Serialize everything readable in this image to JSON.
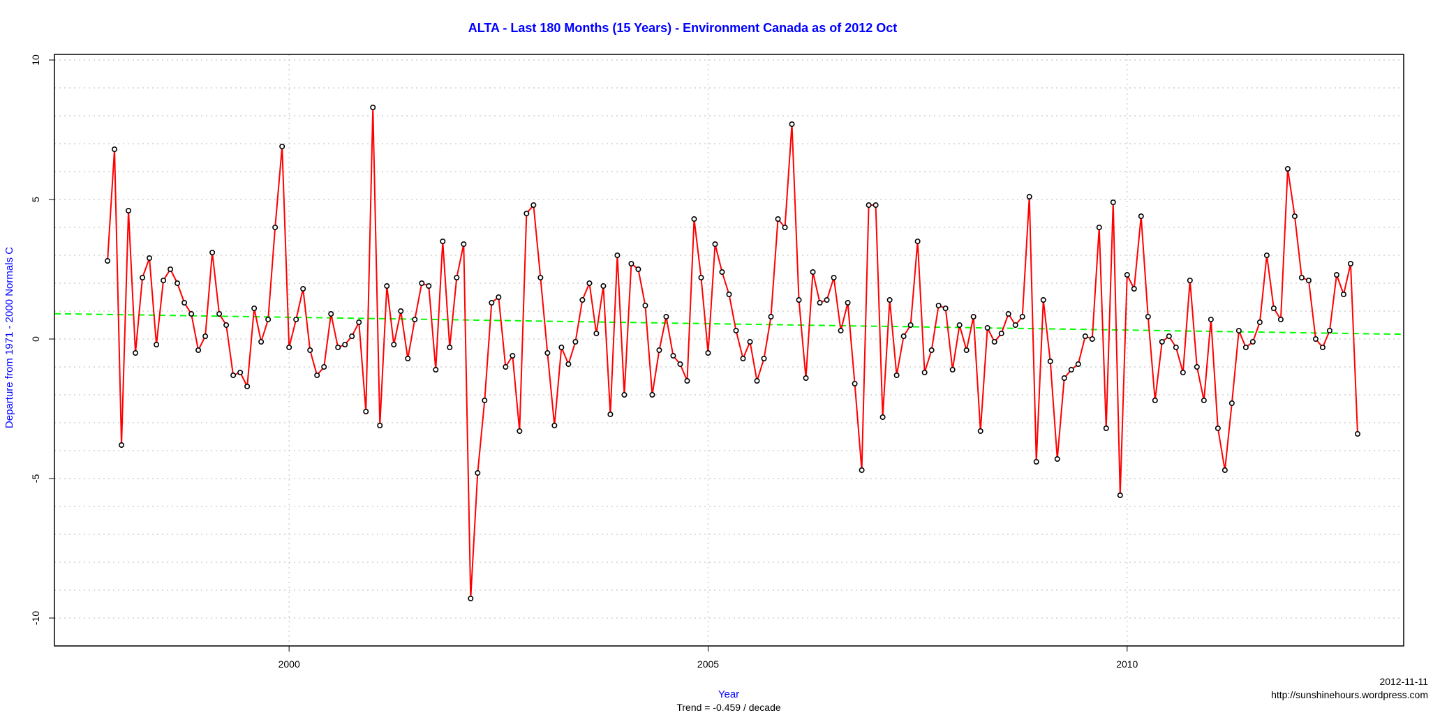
{
  "chart_data": {
    "type": "line",
    "title": "ALTA - Last 180 Months (15 Years) - Environment Canada as of 2012 Oct",
    "xlabel": "Year",
    "ylabel": "Departure from 1971 - 2000 Normals C",
    "subtitle": "Trend = -0.459 / decade",
    "date_stamp": "2012-11-11",
    "source": "http://sunshinehours.wordpress.com",
    "xlim": [
      1997.2,
      2013.3
    ],
    "ylim": [
      -11,
      10.2
    ],
    "x_ticks": [
      2000,
      2005,
      2010
    ],
    "x_tick_labels": [
      "2000",
      "2005",
      "2010"
    ],
    "y_ticks": [
      -10,
      -5,
      0,
      5,
      10
    ],
    "y_tick_labels": [
      "-10",
      "-5",
      "0",
      "5",
      "10"
    ],
    "grid": true,
    "start": "1997-11",
    "end": "2012-10",
    "series": [
      {
        "name": "",
        "color": "#ff0000",
        "marker_color": "#000000",
        "values": [
          2.8,
          6.8,
          -3.8,
          4.6,
          -0.5,
          2.2,
          2.9,
          -0.2,
          2.1,
          2.5,
          2.0,
          1.3,
          0.9,
          -0.4,
          0.1,
          3.1,
          0.9,
          0.5,
          -1.3,
          -1.2,
          -1.7,
          1.1,
          -0.1,
          0.7,
          4.0,
          6.9,
          -0.3,
          0.7,
          1.8,
          -0.4,
          -1.3,
          -1.0,
          0.9,
          -0.3,
          -0.2,
          0.1,
          0.6,
          -2.6,
          8.3,
          -3.1,
          1.9,
          -0.2,
          1.0,
          -0.7,
          0.7,
          2.0,
          1.9,
          -1.1,
          3.5,
          -0.3,
          2.2,
          3.4,
          -9.3,
          -4.8,
          -2.2,
          1.3,
          1.5,
          -1.0,
          -0.6,
          -3.3,
          4.5,
          4.8,
          2.2,
          -0.5,
          -3.1,
          -0.3,
          -0.9,
          -0.1,
          1.4,
          2.0,
          0.2,
          1.9,
          -2.7,
          3.0,
          -2.0,
          2.7,
          2.5,
          1.2,
          -2.0,
          -0.4,
          0.8,
          -0.6,
          -0.9,
          -1.5,
          4.3,
          2.2,
          -0.5,
          3.4,
          2.4,
          1.6,
          0.3,
          -0.7,
          -0.1,
          -1.5,
          -0.7,
          0.8,
          4.3,
          4.0,
          7.7,
          1.4,
          -1.4,
          2.4,
          1.3,
          1.4,
          2.2,
          0.3,
          1.3,
          -1.6,
          -4.7,
          4.8,
          4.8,
          -2.8,
          1.4,
          -1.3,
          0.1,
          0.5,
          3.5,
          -1.2,
          -0.4,
          1.2,
          1.1,
          -1.1,
          0.5,
          -0.4,
          0.8,
          -3.3,
          0.4,
          -0.1,
          0.2,
          0.9,
          0.5,
          0.8,
          5.1,
          -4.4,
          1.4,
          -0.8,
          -4.3,
          -1.4,
          -1.1,
          -0.9,
          0.1,
          0.0,
          4.0,
          -3.2,
          4.9,
          -5.6,
          2.3,
          1.8,
          4.4,
          0.8,
          -2.2,
          -0.1,
          0.1,
          -0.3,
          -1.2,
          2.1,
          -1.0,
          -2.2,
          0.7,
          -3.2,
          -4.7,
          -2.3,
          0.3,
          -0.3,
          -0.1,
          0.6,
          3.0,
          1.1,
          0.7,
          6.1,
          4.4,
          2.2,
          2.1,
          0.0,
          -0.3,
          0.3,
          2.3,
          1.6,
          2.7,
          -3.4
        ]
      }
    ],
    "trend": {
      "color": "#00ff00",
      "slope_per_decade": -0.459,
      "intercept_at_2005": 0.55
    }
  }
}
